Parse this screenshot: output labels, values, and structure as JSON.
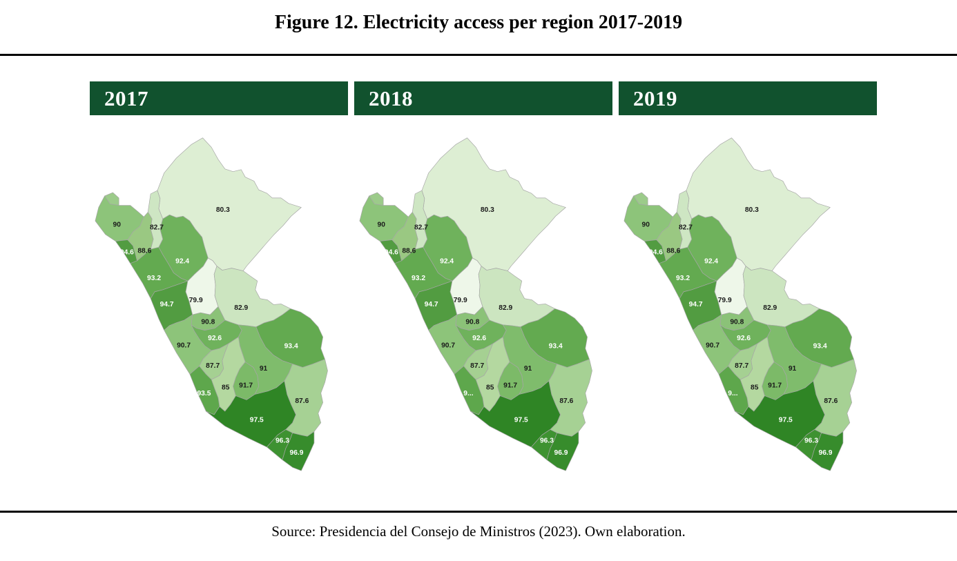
{
  "title": "Figure 12. Electricity access per region 2017-2019",
  "source_note": "Source: Presidencia del Consejo de Ministros (2023). Own elaboration.",
  "colors": {
    "page_background": "#ffffff",
    "header_bar": "#11522e",
    "header_text": "#ffffff",
    "rule": "#000000",
    "region_border": "#a6a6a6",
    "label_dark": "#1a1a1a",
    "label_light": "#ffffff"
  },
  "panels": [
    {
      "year": "2017",
      "label_overrides": {}
    },
    {
      "year": "2018",
      "label_overrides": {
        "ica": "9..."
      }
    },
    {
      "year": "2019",
      "label_overrides": {
        "ica": "9..."
      }
    }
  ],
  "regions": [
    {
      "id": "loreto",
      "label": "80.3",
      "value": 80.3,
      "fill": "#ddeed3",
      "label_color": "#1a1a1a"
    },
    {
      "id": "tumbes",
      "label": "",
      "value": null,
      "fill": "#9ccb8a",
      "label_color": "#1a1a1a"
    },
    {
      "id": "piura",
      "label": "90",
      "value": 90,
      "fill": "#8dc47a",
      "label_color": "#1a1a1a"
    },
    {
      "id": "amazonas",
      "label": "82.7",
      "value": 82.7,
      "fill": "#cee6c3",
      "label_color": "#1a1a1a"
    },
    {
      "id": "lambayeque",
      "label": "94.6",
      "value": 94.6,
      "fill": "#529c41",
      "label_color": "#ffffff"
    },
    {
      "id": "cajamarca",
      "label": "88.6",
      "value": 88.6,
      "fill": "#9ac882",
      "label_color": "#1a1a1a"
    },
    {
      "id": "san_martin",
      "label": "92.4",
      "value": 92.4,
      "fill": "#6fb25c",
      "label_color": "#ffffff"
    },
    {
      "id": "la_libertad",
      "label": "93.2",
      "value": 93.2,
      "fill": "#63aa50",
      "label_color": "#ffffff"
    },
    {
      "id": "ancash",
      "label": "94.7",
      "value": 94.7,
      "fill": "#529c41",
      "label_color": "#ffffff"
    },
    {
      "id": "huanuco",
      "label": "79.9",
      "value": 79.9,
      "fill": "#eef7e9",
      "label_color": "#1a1a1a"
    },
    {
      "id": "ucayali",
      "label": "82.9",
      "value": 82.9,
      "fill": "#cce5c0",
      "label_color": "#1a1a1a"
    },
    {
      "id": "pasco",
      "label": "90.8",
      "value": 90.8,
      "fill": "#8bc278",
      "label_color": "#1a1a1a"
    },
    {
      "id": "junin",
      "label": "92.6",
      "value": 92.6,
      "fill": "#6fb25c",
      "label_color": "#ffffff"
    },
    {
      "id": "lima",
      "label": "90.7",
      "value": 90.7,
      "fill": "#8dc47a",
      "label_color": "#1a1a1a"
    },
    {
      "id": "madre_de_dios",
      "label": "93.4",
      "value": 93.4,
      "fill": "#63aa50",
      "label_color": "#ffffff"
    },
    {
      "id": "huancavelica",
      "label": "87.7",
      "value": 87.7,
      "fill": "#a5d092",
      "label_color": "#1a1a1a"
    },
    {
      "id": "cusco",
      "label": "91",
      "value": 91,
      "fill": "#7fbc6c",
      "label_color": "#1a1a1a"
    },
    {
      "id": "ayacucho",
      "label": "85",
      "value": 85,
      "fill": "#b4d8a0",
      "label_color": "#1a1a1a"
    },
    {
      "id": "apurimac",
      "label": "91.7",
      "value": 91.7,
      "fill": "#7cba68",
      "label_color": "#1a1a1a"
    },
    {
      "id": "ica",
      "label": "93.5",
      "value": 93.5,
      "fill": "#5ea74c",
      "label_color": "#ffffff"
    },
    {
      "id": "puno",
      "label": "87.6",
      "value": 87.6,
      "fill": "#a6d194",
      "label_color": "#1a1a1a"
    },
    {
      "id": "arequipa",
      "label": "97.5",
      "value": 97.5,
      "fill": "#2f8525",
      "label_color": "#ffffff"
    },
    {
      "id": "moquegua",
      "label": "96.3",
      "value": 96.3,
      "fill": "#3e9231",
      "label_color": "#ffffff"
    },
    {
      "id": "tacna",
      "label": "96.9",
      "value": 96.9,
      "fill": "#378c2c",
      "label_color": "#ffffff"
    }
  ],
  "chart_data": {
    "type": "heatmap",
    "subtype": "choropleth-map-of-peru",
    "title": "Figure 12. Electricity access per region 2017-2019",
    "unit": "percent electricity access",
    "years": [
      "2017",
      "2018",
      "2019"
    ],
    "displayed_values": {
      "loreto": 80.3,
      "piura": 90,
      "amazonas": 82.7,
      "lambayeque": 94.6,
      "cajamarca": 88.6,
      "san_martin": 92.4,
      "la_libertad": 93.2,
      "ancash": 94.7,
      "huanuco": 79.9,
      "ucayali": 82.9,
      "pasco": 90.8,
      "junin": 92.6,
      "lima": 90.7,
      "madre_de_dios": 93.4,
      "huancavelica": 87.7,
      "cusco": 91,
      "ayacucho": 85,
      "apurimac": 91.7,
      "ica": 93.5,
      "puno": 87.6,
      "arequipa": 97.5,
      "moquegua": 96.3,
      "tacna": 96.9
    },
    "notes_visible": "Same values shown in all three year panels; Ica label shown truncated as 9... in 2018 and 2019 panels",
    "color_scale": {
      "low_color": "#eef7e9",
      "high_color": "#2f8525",
      "domain": [
        79.9,
        97.5
      ]
    },
    "legend": "none"
  }
}
